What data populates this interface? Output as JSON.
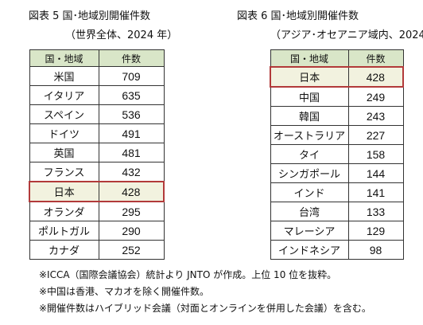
{
  "figure5": {
    "title": "図表 5  国･地域別開催件数",
    "subtitle": "（世界全体、2024 年）",
    "header": [
      "国・地域",
      "件数"
    ],
    "rows": [
      {
        "region": "米国",
        "count": "709"
      },
      {
        "region": "イタリア",
        "count": "635"
      },
      {
        "region": "スペイン",
        "count": "536"
      },
      {
        "region": "ドイツ",
        "count": "491"
      },
      {
        "region": "英国",
        "count": "481"
      },
      {
        "region": "フランス",
        "count": "432"
      },
      {
        "region": "日本",
        "count": "428",
        "highlight": true
      },
      {
        "region": "オランダ",
        "count": "295"
      },
      {
        "region": "ポルトガル",
        "count": "290"
      },
      {
        "region": "カナダ",
        "count": "252"
      }
    ]
  },
  "figure6": {
    "title": "図表 6  国･地域別開催件数",
    "subtitle": "（アジア･オセアニア域内、2024",
    "header": [
      "国・地域",
      "件数"
    ],
    "rows": [
      {
        "region": "日本",
        "count": "428",
        "highlight": true
      },
      {
        "region": "中国",
        "count": "249"
      },
      {
        "region": "韓国",
        "count": "243"
      },
      {
        "region": "オーストラリア",
        "count": "227"
      },
      {
        "region": "タイ",
        "count": "158"
      },
      {
        "region": "シンガポール",
        "count": "144"
      },
      {
        "region": "インド",
        "count": "141"
      },
      {
        "region": "台湾",
        "count": "133"
      },
      {
        "region": "マレーシア",
        "count": "129"
      },
      {
        "region": "インドネシア",
        "count": "98"
      }
    ]
  },
  "notes": [
    "※ICCA（国際会議協会）統計より JNTO が作成。上位 10 位を抜粋。",
    "※中国は香港、マカオを除く開催件数。",
    "※開催件数はハイブリッド会議（対面とオンラインを併用した会議）を含む。"
  ],
  "colors": {
    "header_bg": "#d9e6c8",
    "highlight_border": "#b23a3a",
    "highlight_bg": "#f2f2df"
  }
}
